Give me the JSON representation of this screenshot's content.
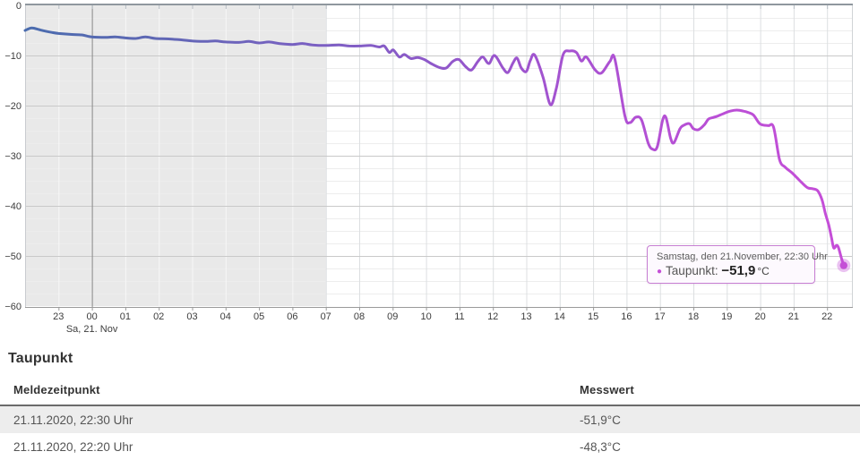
{
  "chart": {
    "tooltip": {
      "date_line": "Samstag, den 21.November, 22:30 Uhr",
      "series_label": "Taupunkt:",
      "value": "−51,9",
      "unit": "°C"
    }
  },
  "chart_data": {
    "type": "line",
    "title": "",
    "series": [
      {
        "name": "Taupunkt",
        "unit": "°C",
        "x_unit": "hours_since_fri_22:00",
        "points": [
          [
            0,
            -5.0
          ],
          [
            0.2,
            -4.5
          ],
          [
            0.45,
            -4.9
          ],
          [
            0.8,
            -5.4
          ],
          [
            1.0,
            -5.6
          ],
          [
            1.4,
            -5.8
          ],
          [
            1.7,
            -5.9
          ],
          [
            2.0,
            -6.3
          ],
          [
            2.4,
            -6.4
          ],
          [
            2.7,
            -6.3
          ],
          [
            3.0,
            -6.5
          ],
          [
            3.3,
            -6.6
          ],
          [
            3.6,
            -6.3
          ],
          [
            3.9,
            -6.6
          ],
          [
            4.3,
            -6.7
          ],
          [
            4.7,
            -6.9
          ],
          [
            5.0,
            -7.1
          ],
          [
            5.4,
            -7.2
          ],
          [
            5.7,
            -7.1
          ],
          [
            6.0,
            -7.3
          ],
          [
            6.4,
            -7.4
          ],
          [
            6.7,
            -7.2
          ],
          [
            7.0,
            -7.5
          ],
          [
            7.3,
            -7.3
          ],
          [
            7.6,
            -7.6
          ],
          [
            8.0,
            -7.8
          ],
          [
            8.3,
            -7.6
          ],
          [
            8.6,
            -7.9
          ],
          [
            9.0,
            -8.0
          ],
          [
            9.4,
            -7.9
          ],
          [
            9.7,
            -8.1
          ],
          [
            10.0,
            -8.1
          ],
          [
            10.35,
            -8.0
          ],
          [
            10.6,
            -8.3
          ],
          [
            10.75,
            -8.1
          ],
          [
            10.9,
            -9.4
          ],
          [
            11.02,
            -8.9
          ],
          [
            11.2,
            -10.3
          ],
          [
            11.35,
            -9.8
          ],
          [
            11.55,
            -10.6
          ],
          [
            11.75,
            -10.4
          ],
          [
            11.95,
            -10.8
          ],
          [
            12.15,
            -11.6
          ],
          [
            12.4,
            -12.4
          ],
          [
            12.6,
            -12.5
          ],
          [
            12.8,
            -11.2
          ],
          [
            12.98,
            -10.8
          ],
          [
            13.18,
            -12.2
          ],
          [
            13.36,
            -12.9
          ],
          [
            13.55,
            -11.2
          ],
          [
            13.7,
            -10.3
          ],
          [
            13.88,
            -11.6
          ],
          [
            14.05,
            -10.0
          ],
          [
            14.3,
            -12.5
          ],
          [
            14.45,
            -13.4
          ],
          [
            14.6,
            -11.5
          ],
          [
            14.72,
            -10.5
          ],
          [
            14.85,
            -12.5
          ],
          [
            15.0,
            -13.2
          ],
          [
            15.12,
            -11.0
          ],
          [
            15.25,
            -9.9
          ],
          [
            15.5,
            -14.3
          ],
          [
            15.72,
            -19.8
          ],
          [
            15.9,
            -16.5
          ],
          [
            16.1,
            -9.9
          ],
          [
            16.3,
            -9.1
          ],
          [
            16.5,
            -9.4
          ],
          [
            16.65,
            -11.1
          ],
          [
            16.8,
            -10.3
          ],
          [
            17.05,
            -12.8
          ],
          [
            17.25,
            -13.5
          ],
          [
            17.5,
            -11.2
          ],
          [
            17.65,
            -10.7
          ],
          [
            17.95,
            -22.0
          ],
          [
            18.1,
            -23.4
          ],
          [
            18.28,
            -22.3
          ],
          [
            18.45,
            -22.9
          ],
          [
            18.65,
            -27.5
          ],
          [
            18.78,
            -28.7
          ],
          [
            18.92,
            -28.2
          ],
          [
            19.08,
            -22.9
          ],
          [
            19.18,
            -22.4
          ],
          [
            19.32,
            -26.5
          ],
          [
            19.42,
            -27.4
          ],
          [
            19.6,
            -24.6
          ],
          [
            19.72,
            -23.9
          ],
          [
            19.88,
            -23.6
          ],
          [
            20.0,
            -24.6
          ],
          [
            20.15,
            -24.8
          ],
          [
            20.32,
            -23.9
          ],
          [
            20.45,
            -22.7
          ],
          [
            20.58,
            -22.4
          ],
          [
            20.72,
            -22.1
          ],
          [
            20.9,
            -21.6
          ],
          [
            21.1,
            -21.1
          ],
          [
            21.3,
            -20.9
          ],
          [
            21.5,
            -21.1
          ],
          [
            21.65,
            -21.4
          ],
          [
            21.8,
            -21.9
          ],
          [
            21.97,
            -23.5
          ],
          [
            22.1,
            -23.9
          ],
          [
            22.25,
            -24.0
          ],
          [
            22.4,
            -24.3
          ],
          [
            22.58,
            -30.8
          ],
          [
            22.75,
            -32.3
          ],
          [
            22.95,
            -33.4
          ],
          [
            23.1,
            -34.4
          ],
          [
            23.25,
            -35.4
          ],
          [
            23.42,
            -36.4
          ],
          [
            23.58,
            -36.6
          ],
          [
            23.72,
            -37.0
          ],
          [
            23.85,
            -38.8
          ],
          [
            23.95,
            -41.5
          ],
          [
            24.05,
            -43.8
          ],
          [
            24.13,
            -46.2
          ],
          [
            24.2,
            -48.4
          ],
          [
            24.28,
            -47.9
          ],
          [
            24.34,
            -48.3
          ],
          [
            24.43,
            -50.4
          ],
          [
            24.5,
            -51.9
          ]
        ]
      }
    ],
    "marker_point": [
      24.5,
      -51.9
    ],
    "x_labels": [
      "23",
      "00",
      "01",
      "02",
      "03",
      "04",
      "05",
      "06",
      "07",
      "08",
      "09",
      "10",
      "11",
      "12",
      "13",
      "14",
      "15",
      "16",
      "17",
      "18",
      "19",
      "20",
      "21",
      "22"
    ],
    "x_day_label": "Sa, 21. Nov",
    "y_ticks": [
      0,
      -10,
      -20,
      -30,
      -40,
      -50,
      -60
    ],
    "ylim": [
      -60,
      0
    ],
    "grid": "on",
    "minor_y_step": 2.5,
    "shade_end_t": 9,
    "midnight_t": 2,
    "legend_position": "tooltip",
    "colors": {
      "shade": "#e9e9e9",
      "grid_minor": "#ededed",
      "grid_major": "#c9c9c9",
      "grid_vert_on_shade": "#f7f7f7",
      "grid_vert": "#dcdfe1",
      "midnight_line": "#898989",
      "top_border": "#8f979e",
      "axis_line": "#9a9a9a",
      "tick_top": "#b6bdc4",
      "label_text": "#3d3d3d",
      "marker": "#c44fd6",
      "line_gradient": [
        [
          0,
          "#4a6cae"
        ],
        [
          0.15,
          "#5e68b4"
        ],
        [
          0.35,
          "#7a60c2"
        ],
        [
          0.55,
          "#9656cc"
        ],
        [
          0.75,
          "#b250d4"
        ],
        [
          1,
          "#c64ed8"
        ]
      ]
    }
  },
  "section": {
    "title": "Taupunkt"
  },
  "table": {
    "headers": [
      "Meldezeitpunkt",
      "Messwert"
    ],
    "rows": [
      {
        "time": "21.11.2020, 22:30 Uhr",
        "value": "-51,9°C"
      },
      {
        "time": "21.11.2020, 22:20 Uhr",
        "value": "-48,3°C"
      }
    ]
  }
}
